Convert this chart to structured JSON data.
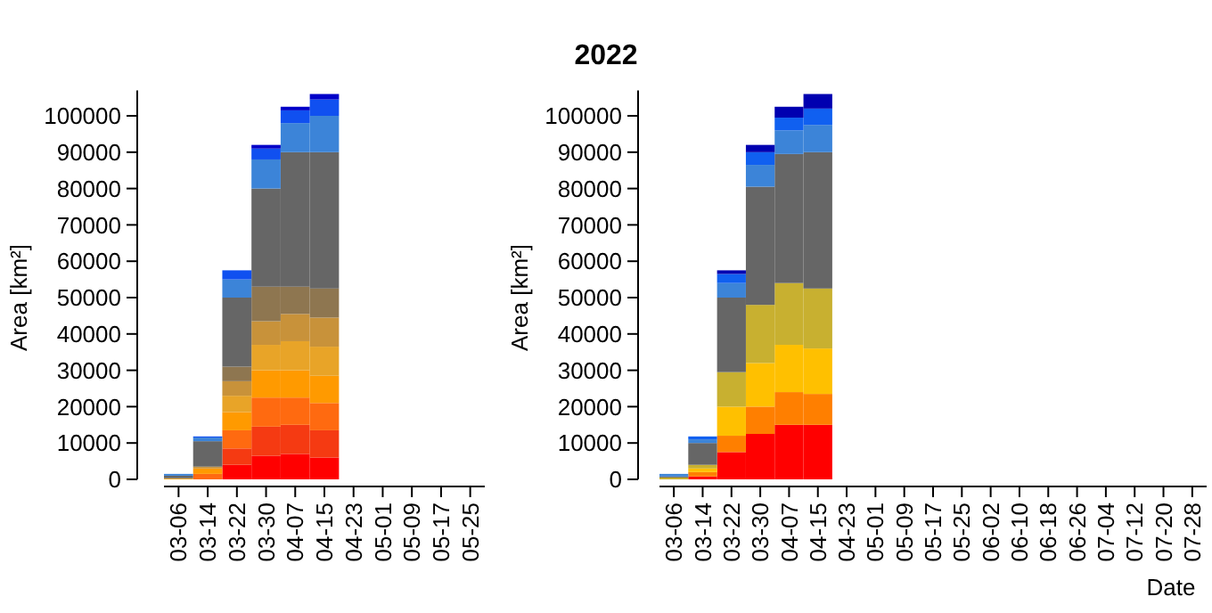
{
  "chart_data": [
    {
      "type": "bar",
      "stacked": true,
      "ylabel": "Area [km²]",
      "categories": [
        "03-06",
        "03-14",
        "03-22",
        "03-30",
        "04-07",
        "04-15",
        "04-23",
        "05-01",
        "05-09",
        "05-17",
        "05-25"
      ],
      "ylim": [
        0,
        107000
      ],
      "yticks": [
        0,
        10000,
        20000,
        30000,
        40000,
        50000,
        60000,
        70000,
        80000,
        90000,
        100000
      ],
      "series": [
        {
          "color": "#ff0000",
          "values": [
            null,
            null,
            4000,
            6500,
            7000,
            6000,
            null,
            null,
            null,
            null,
            null
          ]
        },
        {
          "color": "#f53a12",
          "values": [
            null,
            null,
            4500,
            8000,
            8000,
            7500,
            null,
            null,
            null,
            null,
            null
          ]
        },
        {
          "color": "#ff6a10",
          "values": [
            null,
            1500,
            5000,
            8000,
            7500,
            7500,
            null,
            null,
            null,
            null,
            null
          ]
        },
        {
          "color": "#ff9a00",
          "values": [
            null,
            1500,
            5000,
            7500,
            7500,
            7500,
            null,
            null,
            null,
            null,
            null
          ]
        },
        {
          "color": "#e8a428",
          "values": [
            300,
            null,
            4500,
            7000,
            8000,
            8000,
            null,
            null,
            null,
            null,
            null
          ]
        },
        {
          "color": "#c8923a",
          "values": [
            null,
            500,
            4000,
            6500,
            7500,
            8000,
            null,
            null,
            null,
            null,
            null
          ]
        },
        {
          "color": "#8e7650",
          "values": [
            null,
            null,
            4000,
            9500,
            7500,
            8000,
            null,
            null,
            null,
            null,
            null
          ]
        },
        {
          "color": "#666666",
          "values": [
            700,
            7000,
            19000,
            27000,
            37000,
            37500,
            null,
            null,
            null,
            null,
            null
          ]
        },
        {
          "color": "#3c84d8",
          "values": [
            500,
            1000,
            5000,
            8000,
            8000,
            10000,
            null,
            null,
            null,
            null,
            null
          ]
        },
        {
          "color": "#1050f0",
          "values": [
            null,
            300,
            2500,
            3000,
            3500,
            4500,
            null,
            null,
            null,
            null,
            null
          ]
        },
        {
          "color": "#0000c8",
          "values": [
            null,
            null,
            null,
            1000,
            1000,
            1500,
            null,
            null,
            null,
            null,
            null
          ]
        }
      ]
    },
    {
      "type": "bar",
      "stacked": true,
      "title": "2022",
      "ylabel": "Area [km²]",
      "xlabel": "Date",
      "categories": [
        "03-06",
        "03-14",
        "03-22",
        "03-30",
        "04-07",
        "04-15",
        "04-23",
        "05-01",
        "05-09",
        "05-17",
        "05-25",
        "06-02",
        "06-10",
        "06-18",
        "06-26",
        "07-04",
        "07-12",
        "07-20",
        "07-28"
      ],
      "ylim": [
        0,
        107000
      ],
      "yticks": [
        0,
        10000,
        20000,
        30000,
        40000,
        50000,
        60000,
        70000,
        80000,
        90000,
        100000
      ],
      "series": [
        {
          "color": "#ff0000",
          "values": [
            null,
            800,
            7500,
            12500,
            15000,
            15000,
            null,
            null,
            null,
            null,
            null,
            null,
            null,
            null,
            null,
            null,
            null,
            null,
            null
          ]
        },
        {
          "color": "#ff7f00",
          "values": [
            null,
            1200,
            4500,
            7500,
            9000,
            8500,
            null,
            null,
            null,
            null,
            null,
            null,
            null,
            null,
            null,
            null,
            null,
            null,
            null
          ]
        },
        {
          "color": "#ffc000",
          "values": [
            null,
            1000,
            8000,
            12000,
            13000,
            12500,
            null,
            null,
            null,
            null,
            null,
            null,
            null,
            null,
            null,
            null,
            null,
            null,
            null
          ]
        },
        {
          "color": "#c8b030",
          "values": [
            500,
            1000,
            9500,
            16000,
            17000,
            16500,
            null,
            null,
            null,
            null,
            null,
            null,
            null,
            null,
            null,
            null,
            null,
            null,
            null
          ]
        },
        {
          "color": "#666666",
          "values": [
            300,
            6000,
            20500,
            32500,
            35500,
            37500,
            null,
            null,
            null,
            null,
            null,
            null,
            null,
            null,
            null,
            null,
            null,
            null,
            null
          ]
        },
        {
          "color": "#3c84d8",
          "values": [
            700,
            1000,
            4000,
            6000,
            6500,
            7500,
            null,
            null,
            null,
            null,
            null,
            null,
            null,
            null,
            null,
            null,
            null,
            null,
            null
          ]
        },
        {
          "color": "#1060f0",
          "values": [
            null,
            800,
            2500,
            3500,
            3500,
            4500,
            null,
            null,
            null,
            null,
            null,
            null,
            null,
            null,
            null,
            null,
            null,
            null,
            null
          ]
        },
        {
          "color": "#0000b0",
          "values": [
            null,
            null,
            1000,
            2000,
            3000,
            4000,
            null,
            null,
            null,
            null,
            null,
            null,
            null,
            null,
            null,
            null,
            null,
            null,
            null
          ]
        }
      ]
    }
  ]
}
